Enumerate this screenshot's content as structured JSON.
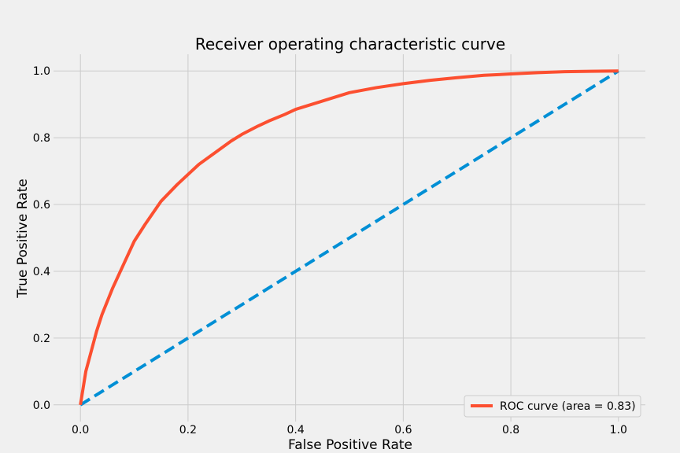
{
  "chart_data": {
    "type": "line",
    "title": "Receiver operating characteristic curve",
    "xlabel": "False Positive Rate",
    "ylabel": "True Positive Rate",
    "xlim": [
      -0.05,
      1.05
    ],
    "ylim": [
      -0.05,
      1.05
    ],
    "xticks": [
      0.0,
      0.2,
      0.4,
      0.6,
      0.8,
      1.0
    ],
    "xtick_labels": [
      "0.0",
      "0.2",
      "0.4",
      "0.6",
      "0.8",
      "1.0"
    ],
    "yticks": [
      0.0,
      0.2,
      0.4,
      0.6,
      0.8,
      1.0
    ],
    "ytick_labels": [
      "0.0",
      "0.2",
      "0.4",
      "0.6",
      "0.8",
      "1.0"
    ],
    "grid": true,
    "legend_position": "lower-right",
    "background_color": "#f0f0f0",
    "grid_color": "#cbcbcb",
    "series": [
      {
        "name": "ROC curve (area = 0.83)",
        "color": "#fc4f30",
        "style": "solid",
        "x": [
          0.0,
          0.005,
          0.01,
          0.02,
          0.03,
          0.04,
          0.05,
          0.06,
          0.08,
          0.1,
          0.12,
          0.15,
          0.18,
          0.2,
          0.22,
          0.25,
          0.28,
          0.3,
          0.33,
          0.35,
          0.38,
          0.4,
          0.43,
          0.45,
          0.5,
          0.55,
          0.6,
          0.65,
          0.7,
          0.75,
          0.8,
          0.85,
          0.9,
          0.95,
          1.0
        ],
        "y": [
          0.0,
          0.05,
          0.1,
          0.16,
          0.22,
          0.27,
          0.31,
          0.35,
          0.42,
          0.49,
          0.54,
          0.61,
          0.66,
          0.69,
          0.72,
          0.755,
          0.79,
          0.81,
          0.835,
          0.85,
          0.87,
          0.885,
          0.9,
          0.91,
          0.935,
          0.95,
          0.962,
          0.972,
          0.98,
          0.987,
          0.991,
          0.995,
          0.998,
          0.999,
          1.0
        ]
      },
      {
        "name": "",
        "color": "#008fd5",
        "style": "dashed",
        "x": [
          0.0,
          1.0
        ],
        "y": [
          0.0,
          1.0
        ]
      }
    ]
  }
}
